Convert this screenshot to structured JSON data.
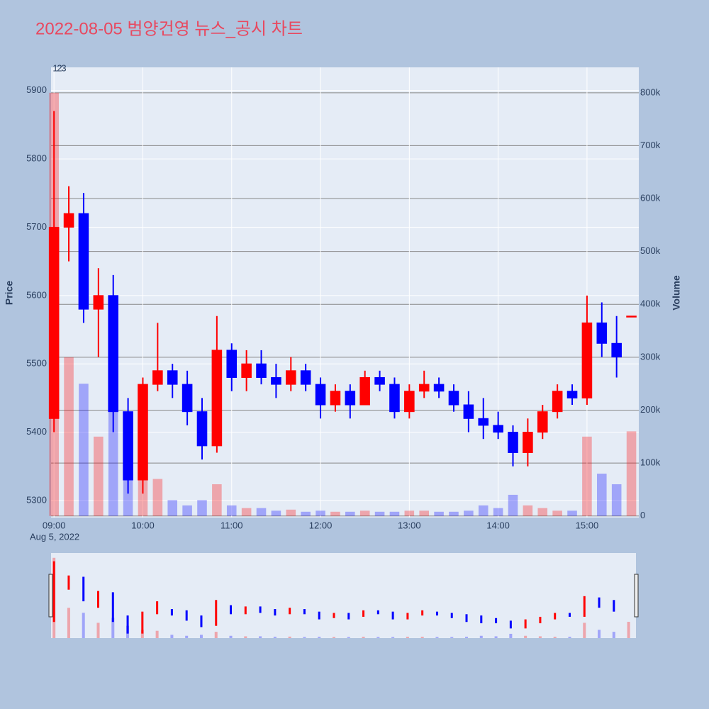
{
  "chart_data": {
    "type": "candlestick",
    "title": "2022-08-05 범양건영 뉴스_공시 차트",
    "y_label": "Price",
    "y2_label": "Volume",
    "x_date_label": "Aug 5, 2022",
    "annotations": [
      "1",
      "2",
      "3"
    ],
    "increasing_color": "#ff0000",
    "decreasing_color": "#0000ff",
    "x": [
      "09:00",
      "09:10",
      "09:20",
      "09:30",
      "09:40",
      "09:50",
      "10:00",
      "10:10",
      "10:20",
      "10:30",
      "10:40",
      "10:50",
      "11:00",
      "11:10",
      "11:20",
      "11:30",
      "11:40",
      "11:50",
      "12:00",
      "12:10",
      "12:20",
      "12:30",
      "12:40",
      "12:50",
      "13:00",
      "13:10",
      "13:20",
      "13:30",
      "13:40",
      "13:50",
      "14:00",
      "14:10",
      "14:20",
      "14:30",
      "14:40",
      "14:50",
      "15:00",
      "15:10",
      "15:20",
      "15:30"
    ],
    "open": [
      5420,
      5700,
      5720,
      5580,
      5600,
      5430,
      5330,
      5470,
      5490,
      5470,
      5430,
      5380,
      5520,
      5480,
      5500,
      5480,
      5470,
      5490,
      5470,
      5440,
      5460,
      5440,
      5480,
      5470,
      5430,
      5460,
      5470,
      5460,
      5440,
      5420,
      5410,
      5400,
      5370,
      5400,
      5430,
      5460,
      5450,
      5560,
      5530,
      5570
    ],
    "high": [
      5870,
      5760,
      5750,
      5640,
      5630,
      5450,
      5480,
      5560,
      5500,
      5490,
      5450,
      5570,
      5530,
      5520,
      5520,
      5500,
      5510,
      5500,
      5480,
      5470,
      5470,
      5490,
      5490,
      5480,
      5470,
      5490,
      5480,
      5470,
      5460,
      5450,
      5430,
      5410,
      5420,
      5440,
      5470,
      5470,
      5600,
      5590,
      5570,
      5570
    ],
    "low": [
      5400,
      5650,
      5560,
      5510,
      5400,
      5310,
      5310,
      5460,
      5450,
      5410,
      5360,
      5370,
      5460,
      5460,
      5470,
      5450,
      5460,
      5460,
      5420,
      5430,
      5420,
      5440,
      5460,
      5420,
      5420,
      5450,
      5450,
      5430,
      5400,
      5390,
      5390,
      5350,
      5350,
      5390,
      5420,
      5440,
      5440,
      5510,
      5480,
      5570
    ],
    "close": [
      5700,
      5720,
      5580,
      5600,
      5430,
      5330,
      5470,
      5490,
      5470,
      5430,
      5380,
      5520,
      5480,
      5500,
      5480,
      5470,
      5490,
      5470,
      5440,
      5460,
      5440,
      5480,
      5470,
      5430,
      5460,
      5470,
      5460,
      5440,
      5420,
      5410,
      5400,
      5370,
      5400,
      5430,
      5460,
      5450,
      5560,
      5530,
      5510,
      5570
    ],
    "volume": [
      800000,
      300000,
      250000,
      150000,
      200000,
      120000,
      80000,
      70000,
      30000,
      20000,
      30000,
      60000,
      20000,
      15000,
      15000,
      10000,
      12000,
      8000,
      10000,
      8000,
      8000,
      10000,
      8000,
      8000,
      10000,
      10000,
      8000,
      8000,
      10000,
      20000,
      15000,
      40000,
      20000,
      15000,
      10000,
      10000,
      150000,
      80000,
      60000,
      160000
    ],
    "xlim": [
      "08:58",
      "15:35"
    ],
    "xticks": [
      "09:00",
      "10:00",
      "11:00",
      "12:00",
      "13:00",
      "14:00",
      "15:00"
    ],
    "ylim": [
      5275,
      5934
    ],
    "yticks": [
      5300,
      5400,
      5500,
      5600,
      5700,
      5800,
      5900
    ],
    "y2lim": [
      -3000,
      848000
    ],
    "y2ticks": [
      0,
      {
        "value": 100000,
        "label": "100k"
      },
      {
        "value": 200000,
        "label": "200k"
      },
      {
        "value": 300000,
        "label": "300k"
      },
      {
        "value": 400000,
        "label": "400k"
      },
      {
        "value": 500000,
        "label": "500k"
      },
      {
        "value": 600000,
        "label": "600k"
      },
      {
        "value": 700000,
        "label": "700k"
      },
      {
        "value": 800000,
        "label": "800k"
      }
    ],
    "grid": true
  }
}
